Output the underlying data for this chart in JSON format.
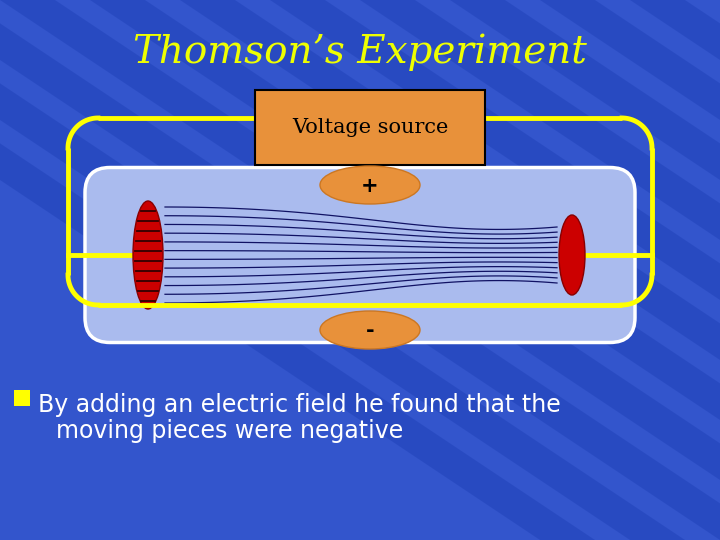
{
  "title": "Thomson’s Experiment",
  "title_color": "#EEFF00",
  "title_fontsize": 28,
  "bg_color": "#3355cc",
  "stripe_color": "#2244bb",
  "voltage_box_color": "#e8913a",
  "voltage_box_text": "Voltage source",
  "plus_label": "+",
  "minus_label": "-",
  "tube_fill": "#aabbee",
  "tube_border": "#ffffff",
  "electrode_color": "#cc0000",
  "wire_color": "#ffff00",
  "bullet_color": "#ffff00",
  "bullet_fontsize": 17,
  "line1": "By adding an electric field he found that the",
  "line2": "moving pieces were negative"
}
